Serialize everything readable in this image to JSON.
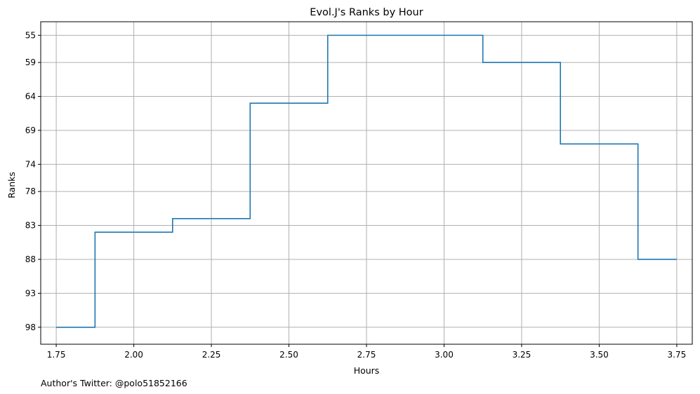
{
  "chart_data": {
    "type": "line",
    "step": "mid",
    "title": "Evol.J's Ranks by Hour",
    "xlabel": "Hours",
    "ylabel": "Ranks",
    "footer": "Author's Twitter: @polo51852166",
    "x": [
      1.75,
      2.0,
      2.25,
      2.5,
      2.75,
      3.0,
      3.25,
      3.5,
      3.75
    ],
    "y": [
      98,
      84,
      82,
      65,
      55,
      55,
      59,
      71,
      88
    ],
    "xlim": [
      1.7,
      3.8
    ],
    "ylim": [
      100.5,
      53.0
    ],
    "y_inverted": true,
    "xticks": [
      "1.75",
      "2.00",
      "2.25",
      "2.50",
      "2.75",
      "3.00",
      "3.25",
      "3.50",
      "3.75"
    ],
    "yticks": [
      "55",
      "59",
      "64",
      "69",
      "74",
      "78",
      "83",
      "88",
      "93",
      "98"
    ],
    "grid": true,
    "line_color": "#1f77b4",
    "grid_color": "#b0b0b0"
  }
}
